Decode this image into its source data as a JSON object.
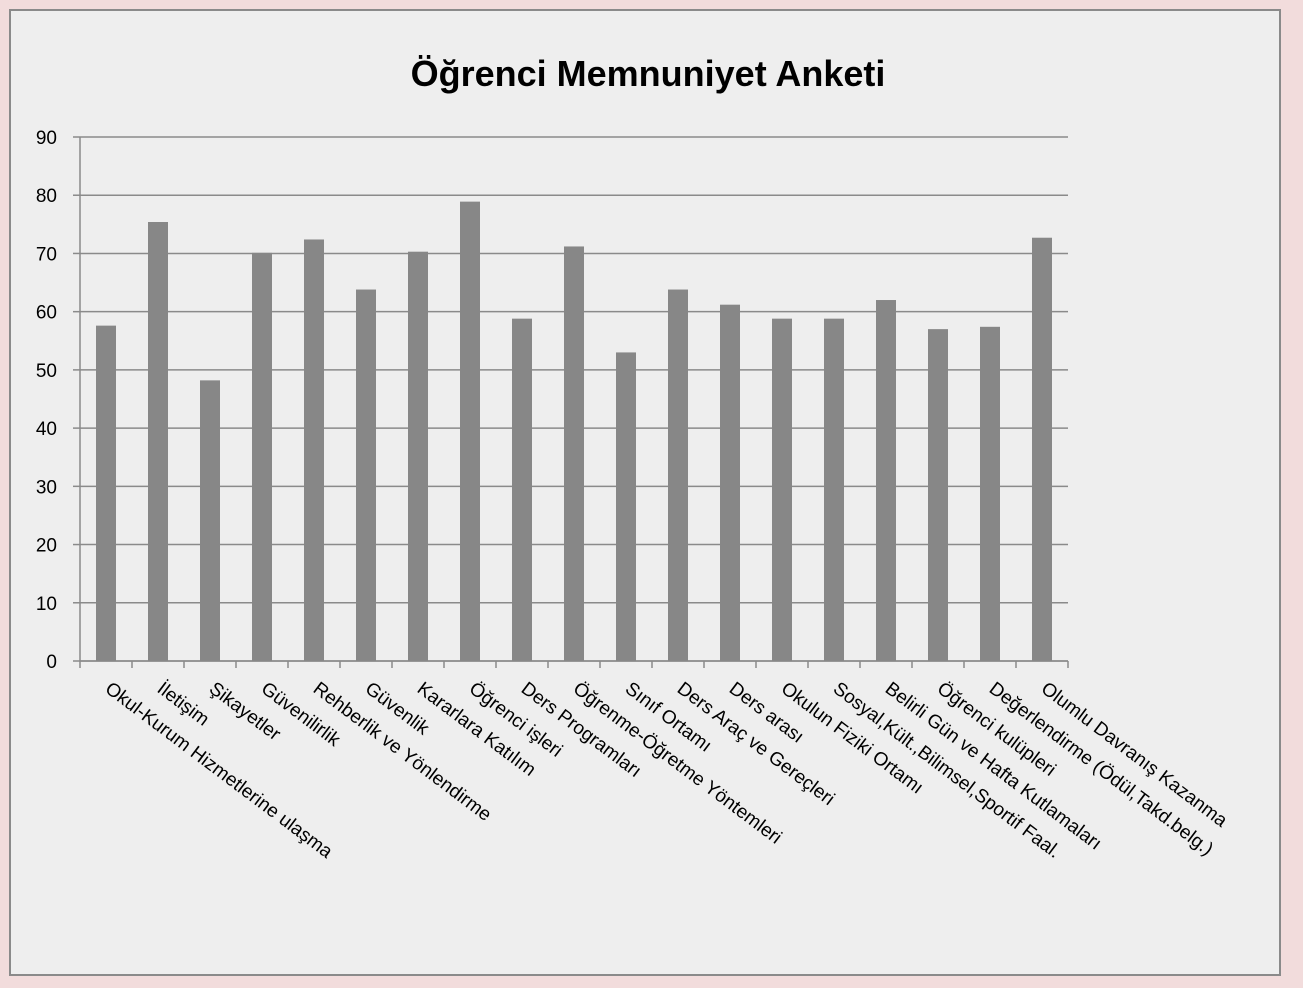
{
  "chart_data": {
    "type": "bar",
    "title": "Öğrenci Memnuniyet Anketi",
    "categories": [
      "Okul-Kurum Hizmetlerine ulaşma",
      "İletişim",
      "Şikayetler",
      "Güvenilirlik",
      "Rehberlik ve Yönlendirme",
      "Güvenlik",
      "Kararlara Katılım",
      "Öğrenci işleri",
      "Ders Programları",
      "Öğrenme-Öğretme Yöntemleri",
      "Sınıf Ortamı",
      "Ders Araç ve Gereçleri",
      "Ders arası",
      "Okulun Fiziki Ortamı",
      "Sosyal,Kült.,Bilimsel,Sportif Faal.",
      "Belirli Gün ve Hafta Kutlamaları",
      "Öğrenci kulüpleri",
      "Değerlendirme (Ödül,Takd.belg.)",
      "Olumlu Davranış Kazanma"
    ],
    "values": [
      57.6,
      75.4,
      48.2,
      70.1,
      72.4,
      63.8,
      70.3,
      78.9,
      58.8,
      71.2,
      53,
      63.8,
      61.2,
      58.8,
      58.8,
      62,
      57,
      57.4,
      72.7
    ],
    "color": "#878787",
    "ylim": [
      0,
      90
    ],
    "yticks": [
      0,
      10,
      20,
      30,
      40,
      50,
      60,
      70,
      80,
      90
    ],
    "grid": true
  }
}
